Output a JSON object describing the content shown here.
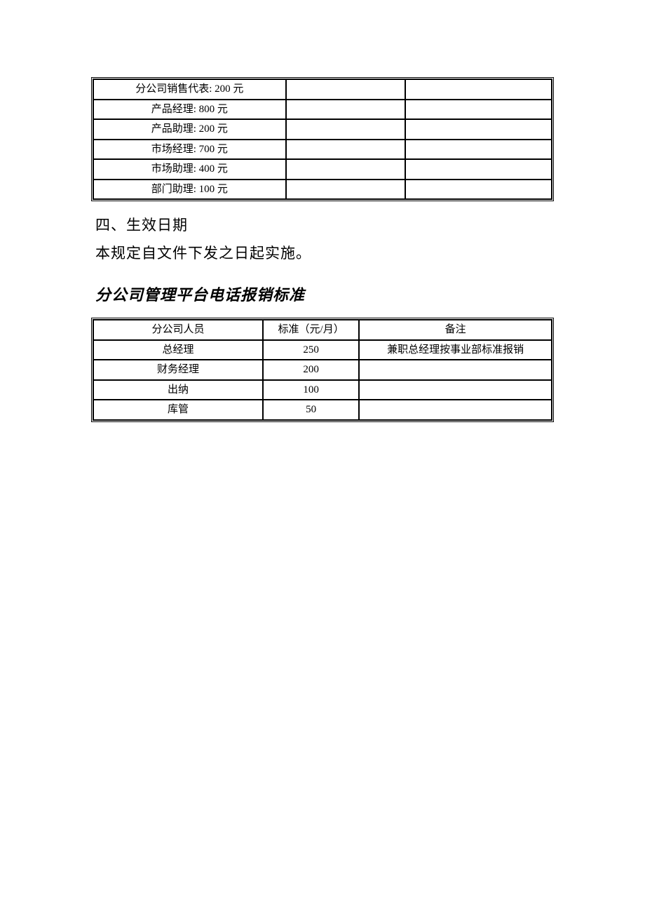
{
  "table1": {
    "rows": [
      {
        "label": "分公司销售代表: 200 元"
      },
      {
        "label": "产品经理: 800 元"
      },
      {
        "label": "产品助理: 200 元"
      },
      {
        "label": "市场经理: 700 元"
      },
      {
        "label": "市场助理: 400 元"
      },
      {
        "label": "部门助理: 100 元"
      }
    ],
    "columns": {
      "c1_width": "42%",
      "c2_width": "26%",
      "c3_width": "32%"
    },
    "border_color": "#000000",
    "font_size": 15
  },
  "section4": {
    "title": "四、生效日期",
    "body": "本规定自文件下发之日起实施。"
  },
  "subtitle": "分公司管理平台电话报销标准",
  "table2": {
    "headers": [
      "分公司人员",
      "标准（元/月）",
      "备注"
    ],
    "rows": [
      {
        "person": "总经理",
        "standard": "250",
        "note": "兼职总经理按事业部标准报销"
      },
      {
        "person": "财务经理",
        "standard": "200",
        "note": ""
      },
      {
        "person": "出纳",
        "standard": "100",
        "note": ""
      },
      {
        "person": "库管",
        "standard": "50",
        "note": ""
      }
    ],
    "columns": {
      "c1_width": "37%",
      "c2_width": "21%",
      "c3_width": "42%"
    },
    "border_color": "#000000",
    "font_size": 15
  },
  "style": {
    "page_bg": "#ffffff",
    "text_color": "#000000",
    "body_font_size": 21,
    "table_font_size": 15,
    "italic_title_font_size": 22
  }
}
